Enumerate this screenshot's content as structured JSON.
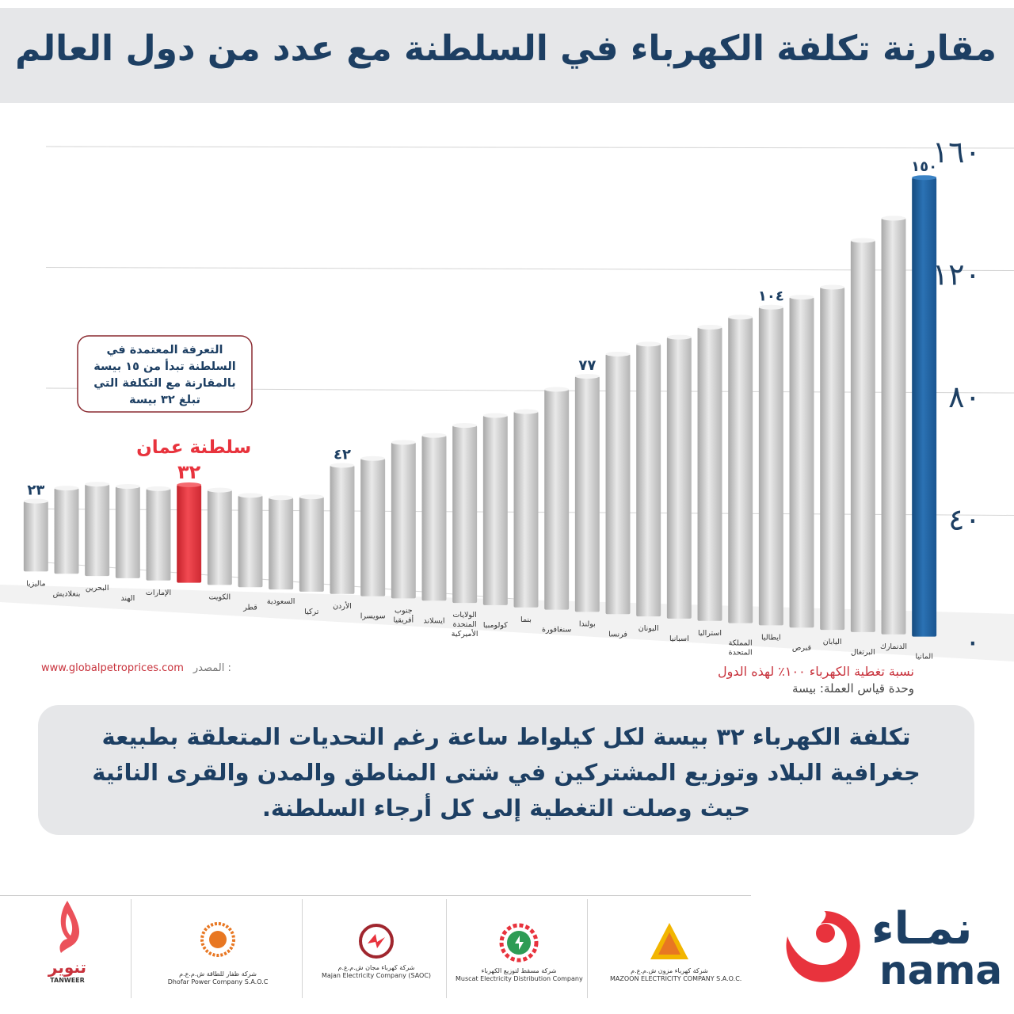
{
  "title": "مقارنة تكلفة الكهرباء في السلطنة مع عدد من دول العالم",
  "chart_data": {
    "type": "bar",
    "ylim": [
      0,
      160
    ],
    "yticks": [
      "٠",
      "٤٠",
      "٨٠",
      "١٢٠",
      "١٦٠"
    ],
    "ytick_values": [
      0,
      40,
      80,
      120,
      160
    ],
    "categories": [
      "ماليزيا",
      "بنغلاديش",
      "البحرين",
      "الهند",
      "الإمارات",
      "سلطنة عمان",
      "الكويت",
      "قطر",
      "السعودية",
      "تركيا",
      "الأردن",
      "سويسرا",
      "جنوب أفريقيا",
      "ايسلاند",
      "الولايات المتحدة الأميركية",
      "كولومبيا",
      "بنما",
      "سنغافورة",
      "بولندا",
      "فرنسا",
      "اليونان",
      "اسبانيا",
      "استراليا",
      "المملكة المتحدة",
      "ايطاليا",
      "قبرص",
      "اليابان",
      "البرتغال",
      "الدنمارك",
      "المانيا"
    ],
    "values": [
      23,
      28,
      30,
      30,
      30,
      32,
      31,
      30,
      30,
      31,
      42,
      45,
      51,
      54,
      58,
      62,
      64,
      72,
      77,
      85,
      89,
      92,
      96,
      100,
      104,
      108,
      112,
      128,
      136,
      150
    ],
    "highlight": {
      "index": 5,
      "color": "#e8333d"
    },
    "max_color": "#1f5f9c",
    "bar_color": "#c9c9c9",
    "value_labels": [
      {
        "index": 0,
        "text": "٢٣"
      },
      {
        "index": 5,
        "text": "٣٢"
      },
      {
        "index": 10,
        "text": "٤٢"
      },
      {
        "index": 18,
        "text": "٧٧"
      },
      {
        "index": 24,
        "text": "١٠٤"
      },
      {
        "index": 29,
        "text": "١٥٠"
      }
    ],
    "highlight_label": "سلطنة عمان",
    "callout": [
      "التعرفة المعتمدة في",
      "السلطنة تبدأ من ١٥ بيسة",
      "بالمقارنة مع التكلفة التي",
      "تبلغ ٣٢ بيسة"
    ]
  },
  "source_label": "المصدر :",
  "source_url": "www.globalpetroprices.com",
  "coverage_note": "نسبة تغطية الكهرباء ١٠٠٪ لهذه الدول",
  "unit_note": "وحدة قياس العملة: بيسة",
  "summary_text": "تكلفة الكهرباء ٣٢ بيسة لكل كيلواط ساعة رغم التحديات المتعلقة بطبيعة جغرافية البلاد وتوزيع المشتركين في شتى المناطق والمدن والقرى النائية حيث وصلت التغطية إلى كل أرجاء السلطنة.",
  "logos": {
    "tanweer_ar": "تنوير",
    "tanweer_en": "TANWEER",
    "dhofar_ar": "شركة ظفار للطاقة ش.م.ع.م",
    "dhofar_en": "Dhofar Power Company S.A.O.C",
    "majan_ar": "شركة كهرباء مجان ش.م.ع.م",
    "majan_en": "Majan Electricity Company (SAOC)",
    "muscat_ar": "شركة مسقط لتوزيع الكهرباء",
    "muscat_en": "Muscat Electricity Distribution Company",
    "mazoon_ar": "شركة كهرباء مزون ش.م.ع.م",
    "mazoon_en": "MAZOON ELECTRICITY COMPANY S.A.O.C.",
    "nama_ar": "نمـاء",
    "nama_en": "nama"
  }
}
